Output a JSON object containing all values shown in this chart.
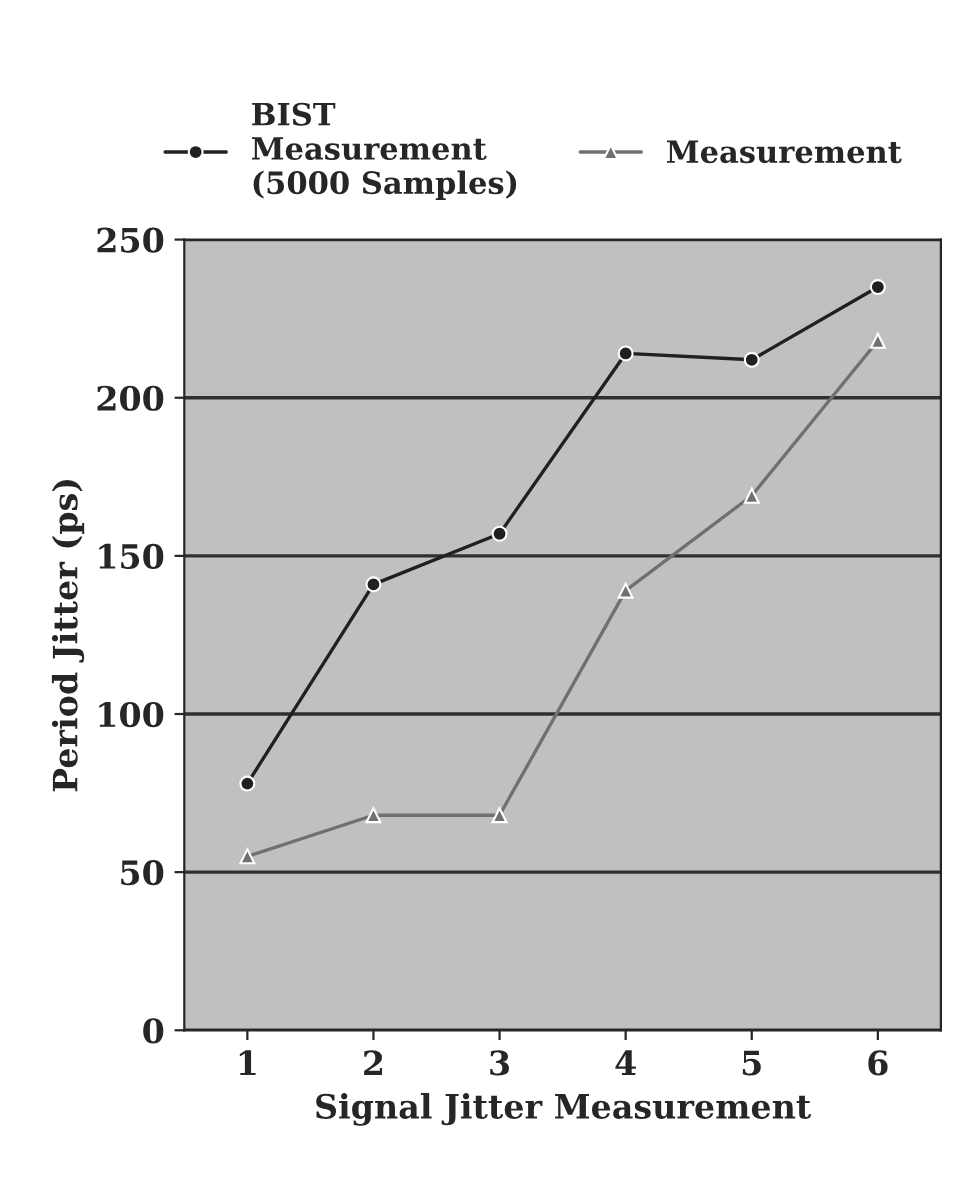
{
  "chart_data": {
    "type": "line",
    "xlabel": "Signal Jitter Measurement",
    "ylabel": "Period Jitter (ps)",
    "categories": [
      "1",
      "2",
      "3",
      "4",
      "5",
      "6"
    ],
    "series": [
      {
        "name": "BIST\nMeasurement\n(5000 Samples)",
        "color": "#202020",
        "marker": "circle",
        "values": [
          78,
          141,
          157,
          214,
          212,
          235
        ]
      },
      {
        "name": "Measurement",
        "color": "#707070",
        "marker": "triangle",
        "values": [
          55,
          68,
          68,
          139,
          169,
          218
        ]
      }
    ],
    "ylim": [
      0,
      250
    ],
    "yticks": [
      0,
      50,
      100,
      150,
      200,
      250
    ],
    "grid": "y",
    "legend": "top",
    "line_style": "solid"
  }
}
